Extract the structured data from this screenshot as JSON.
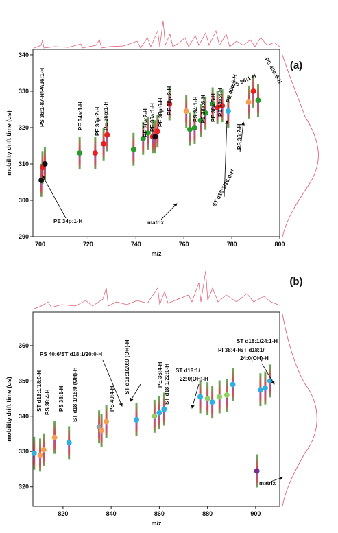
{
  "chart_data": [
    {
      "type": "scatter",
      "panel_label": "(a)",
      "x_label": "m/z",
      "y_label": "mobility drift time (us)",
      "xlim": [
        697,
        800
      ],
      "xticks": [
        700,
        720,
        740,
        760,
        780,
        800
      ],
      "ylim": [
        290,
        341.5
      ],
      "yticks": [
        290,
        300,
        310,
        320,
        330,
        340
      ],
      "x": [
        700.5,
        701,
        702,
        716.5,
        723,
        726.5,
        728,
        739,
        743,
        745,
        747,
        748,
        749,
        754,
        761,
        762.5,
        764.5,
        767,
        769,
        772,
        774,
        776,
        778.5,
        787,
        789,
        791
      ],
      "y": [
        305.5,
        309,
        310,
        313,
        313,
        315.5,
        318,
        314,
        317,
        318.5,
        317.5,
        317.5,
        319,
        326.5,
        324.5,
        319.5,
        320,
        322,
        324,
        326.5,
        325.5,
        326,
        324.5,
        327,
        330,
        327.5
      ],
      "colors": [
        "#111111",
        "#e82020",
        "#111111",
        "#2a9a2a",
        "#e82020",
        "#e82020",
        "#e82020",
        "#2a9a2a",
        "#2a9a2a",
        "#2a9a2a",
        "#e82020",
        "#111111",
        "#e82020",
        "#e82020",
        "#f0a050",
        "#2a9a2a",
        "#2a9a2a",
        "#2a9a2a",
        "#2a9a2a",
        "#2a9a2a",
        "#e82020",
        "#e82020",
        "#30b0e0",
        "#f0a050",
        "#e82020",
        "#2a9a2a"
      ],
      "annotations": [
        "PS 36:1-87-H/PA36:1-H",
        "PE 34a:1-H",
        "PE 36p:2-H",
        "PE 36p:1-H",
        "PE 36a:2-H",
        "PE 36a:1-H",
        "PE 38p:6-H",
        "PE 38p:2-H",
        "PS 34:1-H",
        "PE 38a:6-H",
        "PE 38a:5-H",
        "PE 38a:4-H",
        "PE 40p:6-H",
        "PS 36:1-H",
        "PE 40a:6-H",
        "PS 36:2-H",
        "PE 34p:1-H",
        "ST d18:1/16:0-H",
        "matrix"
      ]
    },
    {
      "type": "scatter",
      "panel_label": "(b)",
      "x_label": "m/z",
      "y_label": "mobility drift time (us)",
      "xlim": [
        807.5,
        910
      ],
      "xticks": [
        820,
        840,
        860,
        880,
        900
      ],
      "ylim": [
        314.5,
        369.5
      ],
      "yticks": [
        320,
        330,
        340,
        350,
        360
      ],
      "x": [
        808,
        810.5,
        812,
        816.5,
        822.5,
        835,
        836,
        838,
        850.5,
        858,
        860,
        862,
        877,
        880,
        882,
        885,
        888,
        890.5,
        902,
        904,
        906,
        900.5
      ],
      "y": [
        329.5,
        329,
        330.5,
        334,
        332.5,
        337,
        336,
        338.5,
        339,
        340,
        341,
        342,
        345.5,
        345,
        344,
        345.5,
        346,
        349,
        347.5,
        348,
        350,
        324.5
      ],
      "colors": [
        "#30b0e0",
        "#f0a050",
        "#f0a050",
        "#f0a050",
        "#30b0e0",
        "#9aa0a0",
        "#f0a050",
        "#f0a050",
        "#30b0e0",
        "#8fd060",
        "#30b0e0",
        "#30b0e0",
        "#30b0e0",
        "#8fd060",
        "#30b0e0",
        "#8fd060",
        "#8fd060",
        "#30b0e0",
        "#30b0e0",
        "#30b0e0",
        "#30b0e0",
        "#7a2a8a"
      ],
      "annotations": [
        "ST d18:1/18:0-H",
        "PS 38:4-H",
        "PS 38:1-H",
        "ST d18:1/18:0 (OH)-H",
        "PS 40:6/ST d18:1/20:0-H",
        "PS 40:4-H",
        "ST d18:1/20:0 (OH)-H",
        "PE 36:4-H",
        "ST d18:1/22:0-H",
        "ST d18:1/",
        "22:0(OH)-H",
        "PI 38:4-H",
        "ST d18:1/24:1-H",
        "ST d18:1/",
        "24:0(OH)-H",
        "matrix"
      ]
    }
  ]
}
